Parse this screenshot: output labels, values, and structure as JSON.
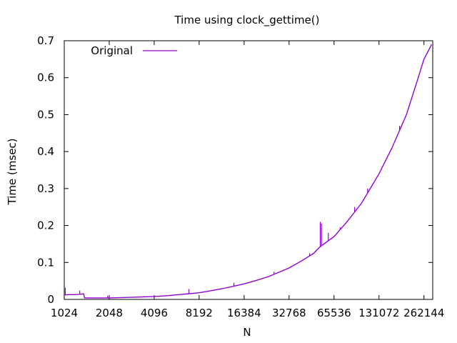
{
  "chart_data": {
    "type": "line",
    "title": "Time using clock_gettime()",
    "xlabel": "N",
    "ylabel": "Time (msec)",
    "x_scale": "log2",
    "xlim": [
      1024,
      300000
    ],
    "ylim": [
      0,
      0.7
    ],
    "x_ticks": [
      "1024",
      "2048",
      "4096",
      "8192",
      "16384",
      "32768",
      "65536",
      "131072",
      "262144"
    ],
    "y_ticks": [
      "0",
      "0.1",
      "0.2",
      "0.3",
      "0.4",
      "0.5",
      "0.6",
      "0.7"
    ],
    "grid": false,
    "legend_position": "top-left",
    "series": [
      {
        "name": "Original",
        "color": "#9400d3",
        "points": [
          [
            1024,
            0.012
          ],
          [
            1100,
            0.013
          ],
          [
            1200,
            0.013
          ],
          [
            1300,
            0.014
          ],
          [
            1380,
            0.015
          ],
          [
            1400,
            0.004
          ],
          [
            1700,
            0.004
          ],
          [
            2048,
            0.004
          ],
          [
            2500,
            0.005
          ],
          [
            3000,
            0.006
          ],
          [
            4096,
            0.008
          ],
          [
            5000,
            0.01
          ],
          [
            6000,
            0.013
          ],
          [
            8192,
            0.018
          ],
          [
            10000,
            0.024
          ],
          [
            12000,
            0.03
          ],
          [
            16384,
            0.042
          ],
          [
            20000,
            0.052
          ],
          [
            24000,
            0.062
          ],
          [
            32768,
            0.085
          ],
          [
            40000,
            0.105
          ],
          [
            48000,
            0.125
          ],
          [
            52000,
            0.14
          ],
          [
            56000,
            0.15
          ],
          [
            65536,
            0.17
          ],
          [
            80000,
            0.21
          ],
          [
            100000,
            0.26
          ],
          [
            131072,
            0.34
          ],
          [
            160000,
            0.41
          ],
          [
            200000,
            0.5
          ],
          [
            240000,
            0.6
          ],
          [
            262144,
            0.65
          ],
          [
            295000,
            0.69
          ]
        ],
        "spikes": [
          [
            1040,
            0.032
          ],
          [
            1300,
            0.024
          ],
          [
            2000,
            0.01
          ],
          [
            3500,
            0.009
          ],
          [
            7000,
            0.028
          ],
          [
            14000,
            0.045
          ],
          [
            26000,
            0.075
          ],
          [
            45000,
            0.125
          ],
          [
            53000,
            0.21
          ],
          [
            54000,
            0.205
          ],
          [
            60000,
            0.18
          ],
          [
            72000,
            0.195
          ],
          [
            90000,
            0.25
          ],
          [
            110000,
            0.3
          ],
          [
            180000,
            0.47
          ]
        ]
      }
    ]
  }
}
